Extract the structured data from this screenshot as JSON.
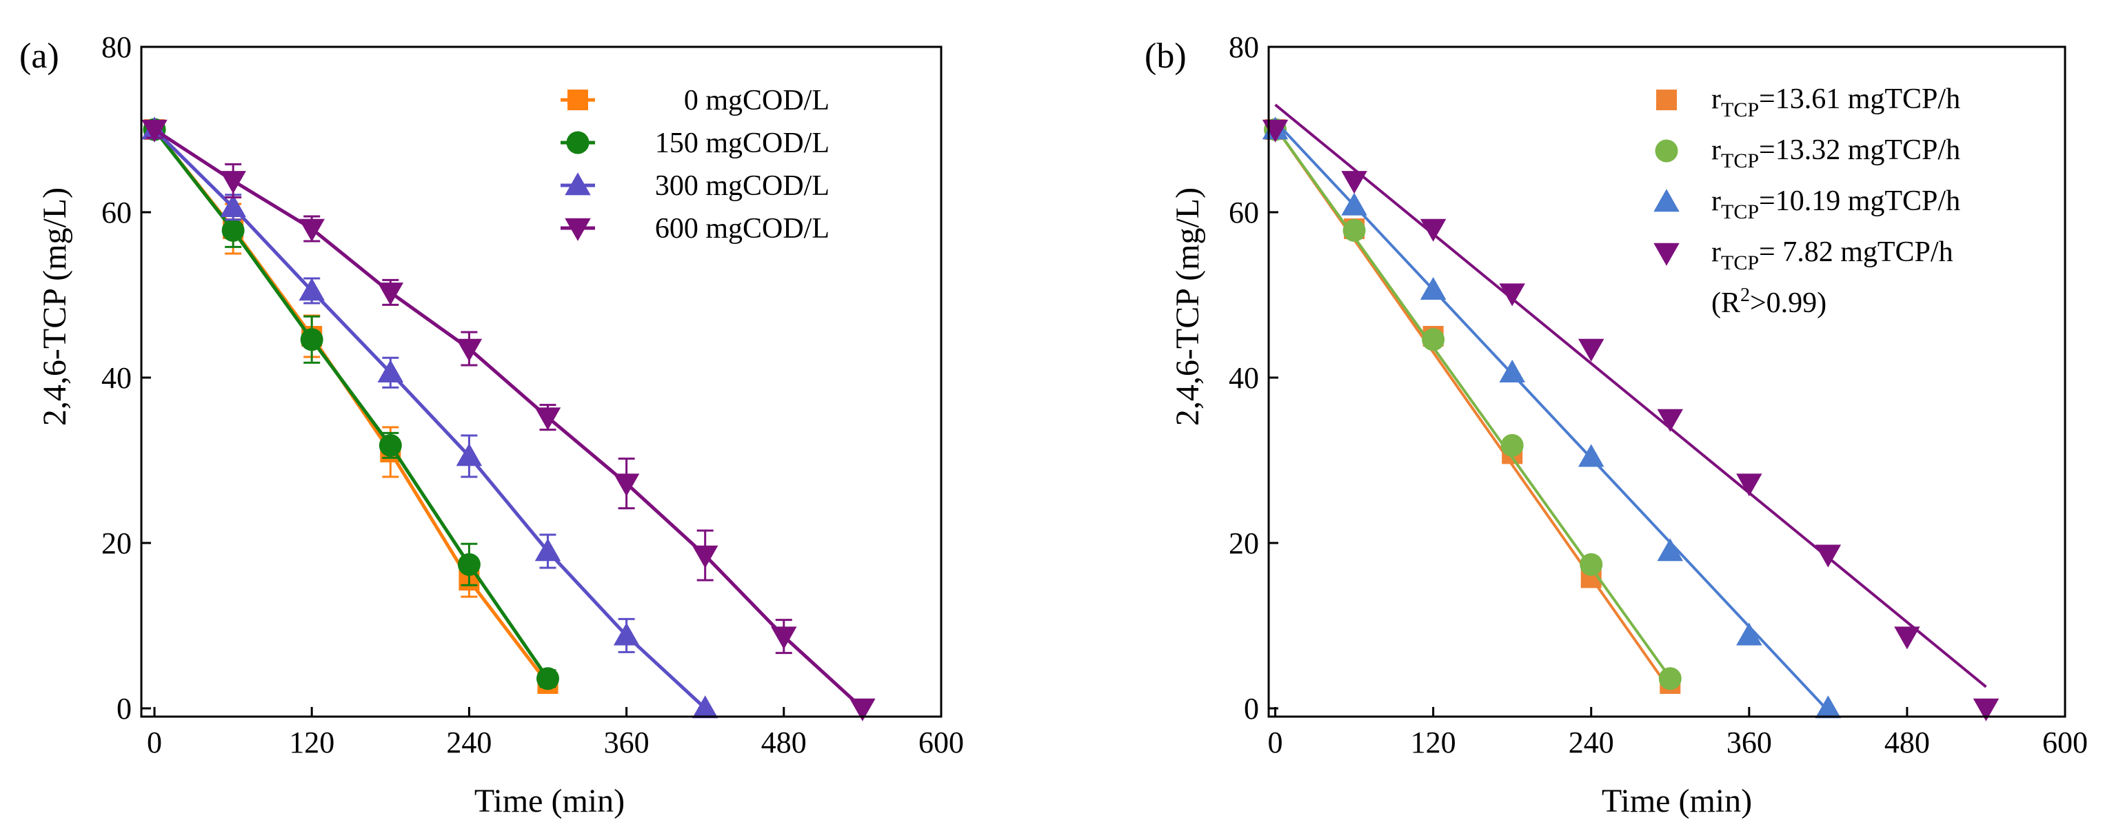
{
  "chart_data": [
    {
      "panel_label": "(a)",
      "type": "line",
      "xlabel": "Time (min)",
      "ylabel": "2,4,6-TCP (mg/L)",
      "xlim": [
        -10,
        600
      ],
      "ylim": [
        -1,
        80
      ],
      "xticks": [
        0,
        120,
        240,
        360,
        480,
        600
      ],
      "yticks": [
        0,
        20,
        40,
        60,
        80
      ],
      "legend_position": "top-right",
      "series": [
        {
          "name": "0 mgCOD/L",
          "color": "#ff7f0e",
          "marker": "square",
          "x": [
            0,
            60,
            120,
            180,
            240,
            300
          ],
          "y": [
            70.0,
            58.0,
            45.0,
            31.0,
            15.5,
            3.0
          ],
          "err": [
            1.0,
            3.0,
            2.5,
            3.0,
            2.0,
            1.0
          ]
        },
        {
          "name": "150 mgCOD/L",
          "color": "#138013",
          "marker": "circle",
          "x": [
            0,
            60,
            120,
            180,
            240,
            300
          ],
          "y": [
            70.0,
            57.8,
            44.6,
            31.8,
            17.4,
            3.6
          ],
          "err": [
            1.0,
            2.0,
            2.8,
            1.5,
            2.5,
            1.0
          ]
        },
        {
          "name": "300 mgCOD/L",
          "color": "#5b4fc6",
          "marker": "triangle-up",
          "x": [
            0,
            60,
            120,
            180,
            240,
            300,
            360,
            420
          ],
          "y": [
            70.0,
            60.6,
            50.5,
            40.6,
            30.5,
            19.0,
            8.8,
            0.0
          ],
          "err": [
            1.0,
            1.5,
            1.5,
            1.8,
            2.5,
            2.0,
            2.0,
            0.0
          ]
        },
        {
          "name": "600 mgCOD/L",
          "color": "#7d0f7d",
          "marker": "triangle-down",
          "x": [
            0,
            60,
            120,
            180,
            240,
            300,
            360,
            420,
            480,
            540
          ],
          "y": [
            70.0,
            63.8,
            58.0,
            50.3,
            43.5,
            35.2,
            27.2,
            18.5,
            8.7,
            0.0
          ],
          "err": [
            1.0,
            2.0,
            1.5,
            1.5,
            2.0,
            1.5,
            3.0,
            3.0,
            2.0,
            0.0
          ]
        }
      ]
    },
    {
      "panel_label": "(b)",
      "type": "scatter",
      "xlabel": "Time (min)",
      "ylabel": "2,4,6-TCP (mg/L)",
      "xlim": [
        -5,
        600
      ],
      "ylim": [
        -1,
        80
      ],
      "xticks": [
        0,
        120,
        240,
        360,
        480,
        600
      ],
      "yticks": [
        0,
        20,
        40,
        60,
        80
      ],
      "legend_position": "top-right",
      "legend_note": "(R2>0.99)",
      "series": [
        {
          "name": "rTCP=13.61 mgTCP/h",
          "rate": "13.61",
          "color": "#ef8133",
          "marker": "square",
          "x": [
            0,
            60,
            120,
            180,
            240,
            300
          ],
          "y": [
            70.0,
            58.0,
            45.0,
            30.8,
            15.8,
            3.0
          ],
          "fit": [
            0,
            70.3,
            300,
            2.2
          ]
        },
        {
          "name": "rTCP=13.32 mgTCP/h",
          "rate": "13.32",
          "color": "#7ab648",
          "marker": "circle",
          "x": [
            0,
            60,
            120,
            180,
            240,
            300
          ],
          "y": [
            70.0,
            57.8,
            44.6,
            31.8,
            17.4,
            3.6
          ],
          "fit": [
            0,
            70.3,
            300,
            3.7
          ]
        },
        {
          "name": "rTCP=10.19 mgTCP/h",
          "rate": "10.19",
          "color": "#4a7ccf",
          "marker": "triangle-up",
          "x": [
            0,
            60,
            120,
            180,
            240,
            300,
            360,
            420
          ],
          "y": [
            70.0,
            60.8,
            50.6,
            40.6,
            30.4,
            19.0,
            8.8,
            0.0
          ],
          "fit": [
            0,
            71.0,
            420,
            -0.3
          ]
        },
        {
          "name": "rTCP= 7.82  mgTCP/h",
          "rate": "7.82",
          "color": "#7d0f7d",
          "marker": "triangle-down",
          "x": [
            0,
            60,
            120,
            180,
            240,
            300,
            360,
            420,
            480,
            540
          ],
          "y": [
            70.0,
            63.8,
            58.0,
            50.2,
            43.5,
            35.0,
            27.2,
            18.6,
            8.7,
            0.0
          ],
          "fit": [
            0,
            73.0,
            540,
            2.6
          ]
        }
      ]
    }
  ],
  "legend_b": {
    "prefix": "r",
    "sub": "TCP",
    "items": [
      "=13.61 mgTCP/h",
      "=13.32 mgTCP/h",
      "=10.19 mgTCP/h",
      "= 7.82  mgTCP/h"
    ],
    "r2_open": "(R",
    "r2_sup": "2",
    "r2_close": ">0.99)"
  }
}
